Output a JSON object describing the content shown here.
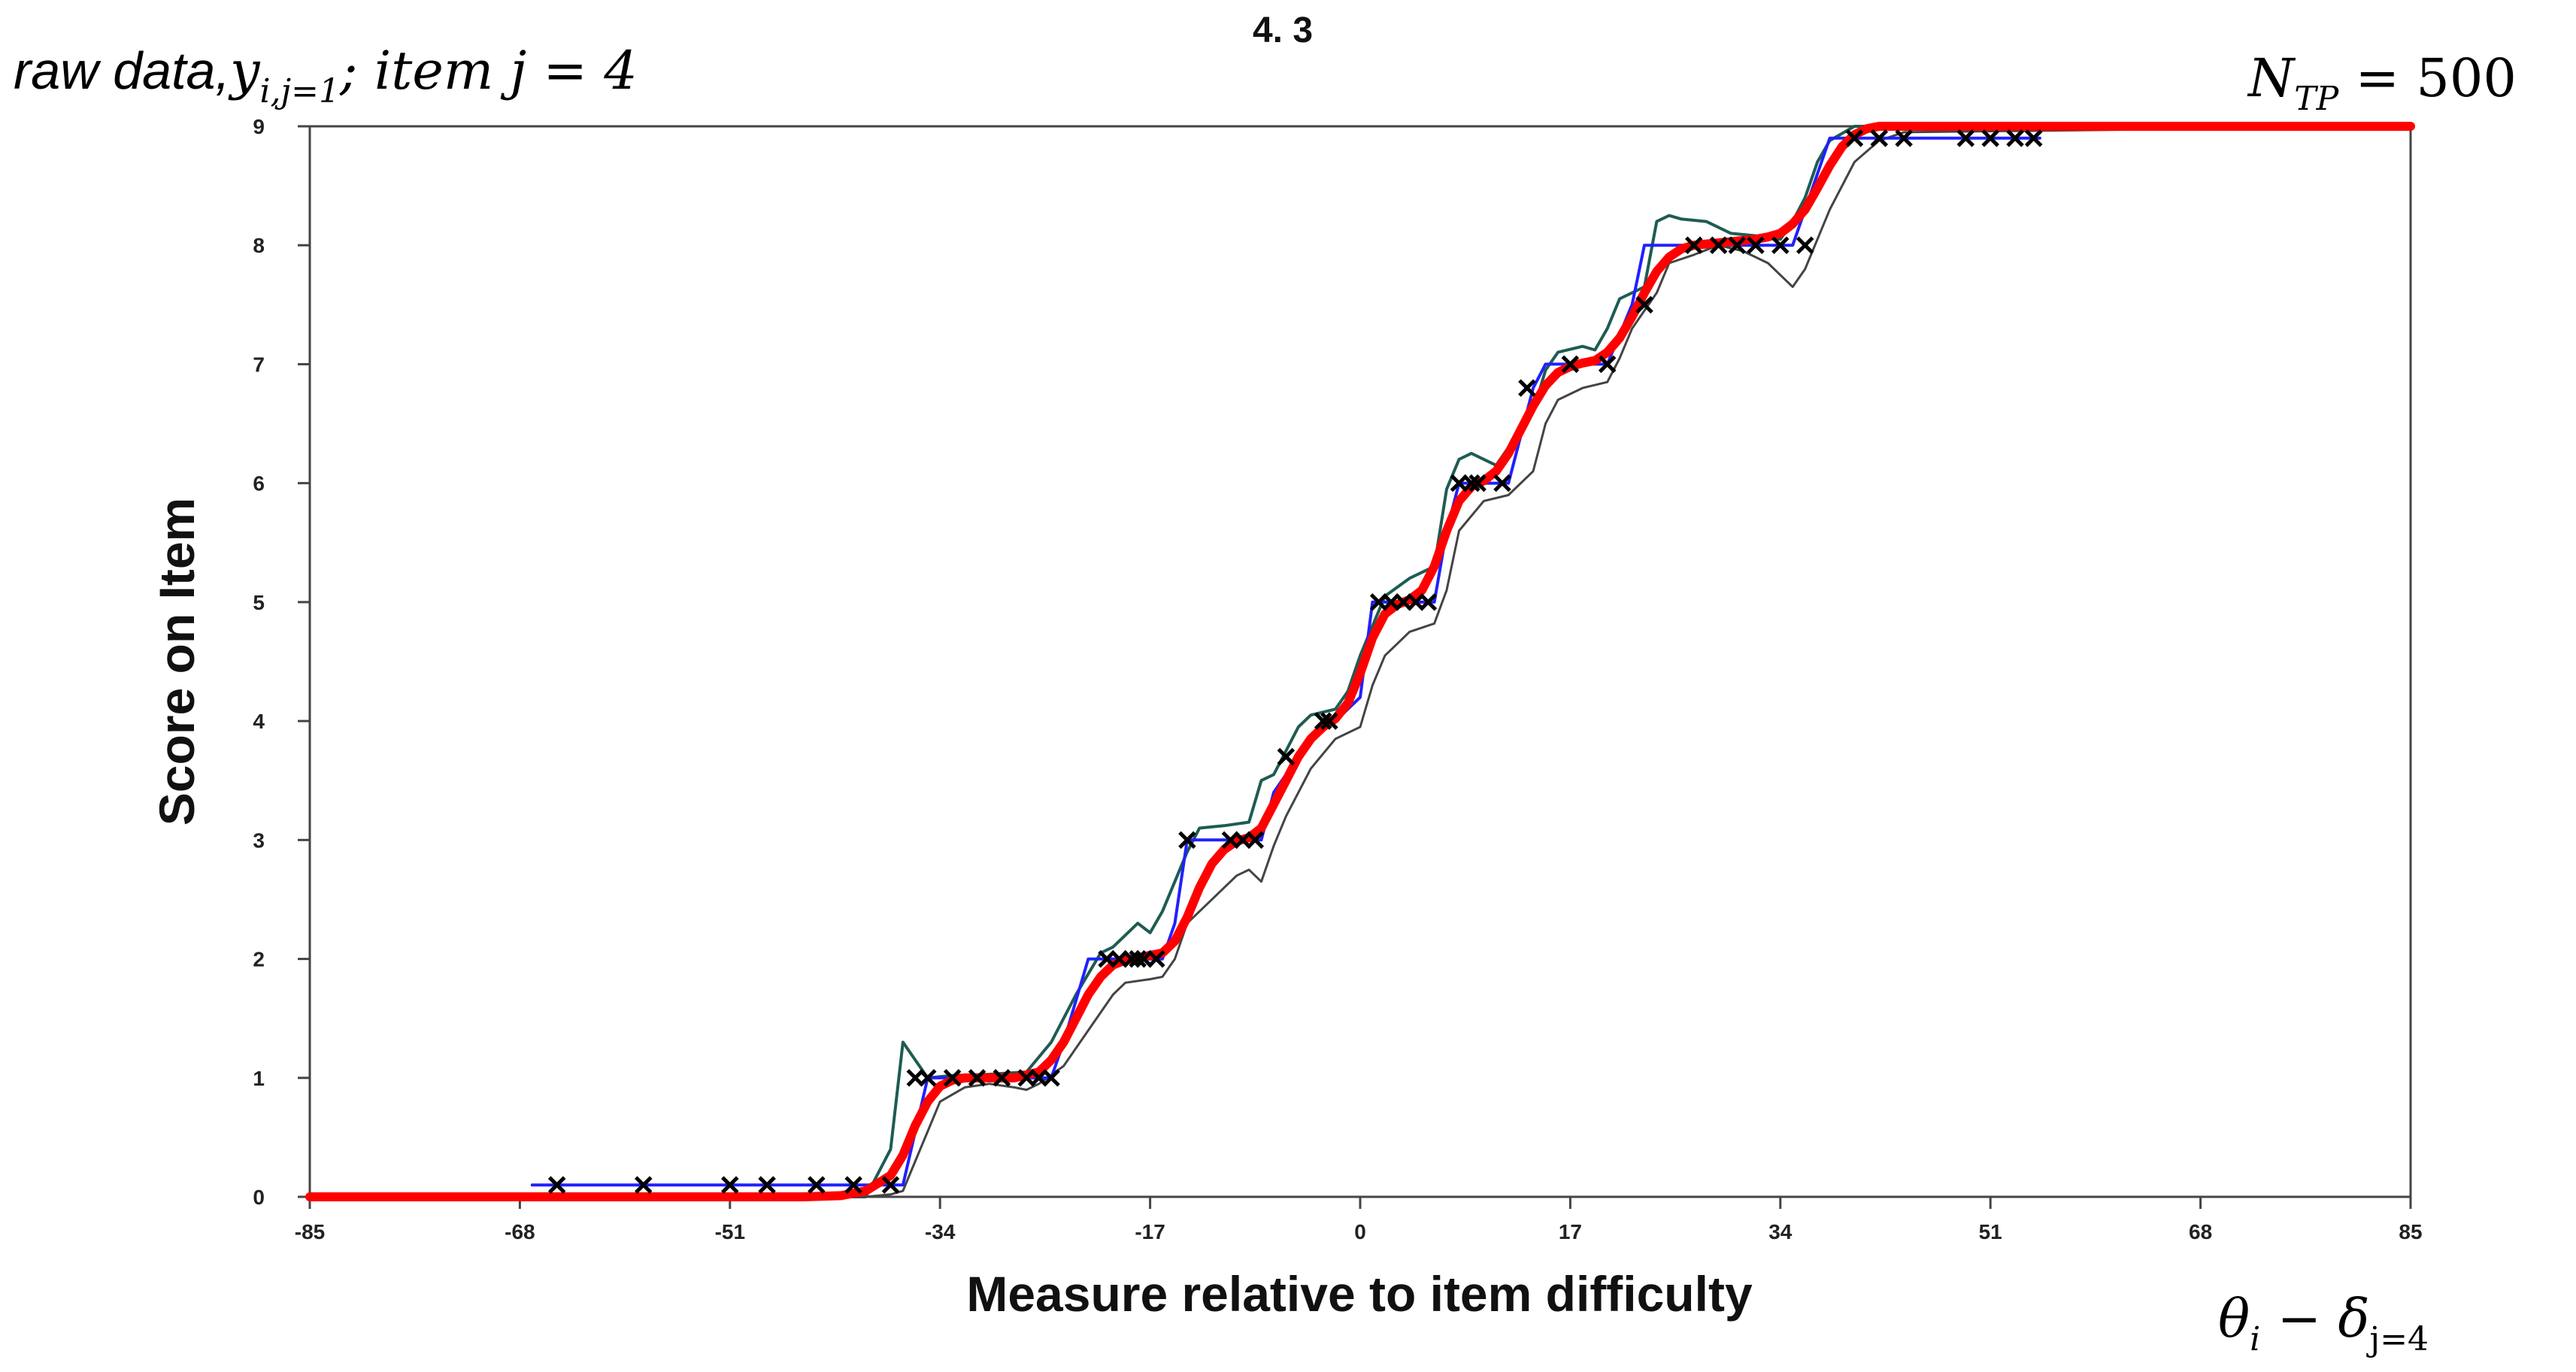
{
  "chart_data": {
    "type": "line",
    "title": "4. 3",
    "xlabel": "Measure relative to item difficulty",
    "ylabel": "Score on Item",
    "xlim": [
      -85,
      85
    ],
    "ylim": [
      0,
      9
    ],
    "x_ticks": [
      -85,
      -68,
      -51,
      -34,
      -17,
      0,
      17,
      34,
      51,
      68,
      85
    ],
    "y_ticks": [
      0,
      1,
      2,
      3,
      4,
      5,
      6,
      7,
      8,
      9
    ],
    "grid": false,
    "annotations": {
      "top_left": {
        "prefix": "raw data,",
        "y": "y",
        "y_sub": "i,j=1",
        "rest": "; item j = 4"
      },
      "top_right": {
        "N": "N",
        "N_sub": "TP",
        "eq": " = 500"
      },
      "bottom_right": {
        "theta": "θ",
        "theta_sub": "i",
        "minus": " − ",
        "delta": "δ",
        "delta_sub": "j=4"
      }
    },
    "colors": {
      "expected": "#ff0000",
      "observed": "#2020ff",
      "upper_band": "#1e5c52",
      "lower_band": "#444444",
      "points": "#000000",
      "frame": "#444444"
    },
    "series": [
      {
        "role": "expected",
        "x": [
          -85,
          -45,
          -42,
          -40,
          -38,
          -37,
          -36,
          -35,
          -34,
          -33,
          -32,
          -30,
          -28,
          -26,
          -25,
          -24,
          -23,
          -22,
          -21,
          -20,
          -19,
          -18,
          -16,
          -15,
          -14,
          -13,
          -12,
          -11,
          -10,
          -9,
          -8,
          -7,
          -6,
          -5,
          -4,
          -3,
          -2,
          -1,
          0,
          1,
          2,
          3,
          4,
          5,
          6,
          7,
          8,
          9,
          10,
          11,
          12,
          13,
          14,
          15,
          16,
          17,
          18,
          19,
          20,
          21,
          22,
          23,
          24,
          25,
          26,
          27,
          28,
          29,
          30,
          31,
          32,
          33,
          34,
          35,
          36,
          37,
          38,
          39,
          40,
          41,
          42,
          43,
          45,
          85
        ],
        "y": [
          0,
          0,
          0.01,
          0.05,
          0.18,
          0.35,
          0.6,
          0.8,
          0.93,
          0.98,
          1,
          1,
          1,
          1.05,
          1.15,
          1.3,
          1.5,
          1.7,
          1.85,
          1.95,
          1.99,
          2.01,
          2.05,
          2.15,
          2.35,
          2.6,
          2.8,
          2.92,
          2.99,
          3.02,
          3.1,
          3.3,
          3.5,
          3.7,
          3.85,
          3.95,
          4.02,
          4.15,
          4.4,
          4.7,
          4.9,
          4.98,
          5.02,
          5.1,
          5.3,
          5.6,
          5.85,
          5.97,
          6.02,
          6.1,
          6.25,
          6.45,
          6.65,
          6.82,
          6.93,
          6.98,
          7.01,
          7.03,
          7.1,
          7.22,
          7.4,
          7.6,
          7.78,
          7.9,
          7.97,
          8,
          8.01,
          8.02,
          8.03,
          8.04,
          8.05,
          8.07,
          8.1,
          8.18,
          8.3,
          8.48,
          8.67,
          8.83,
          8.93,
          8.98,
          9,
          9,
          9,
          9
        ]
      },
      {
        "role": "observed",
        "x": [
          -67,
          -60,
          -53,
          -49,
          -44,
          -40,
          -38,
          -37,
          -35,
          -30,
          -26,
          -25,
          -24,
          -22,
          -20,
          -18,
          -16,
          -15,
          -14,
          -12,
          -10,
          -8,
          -7,
          -5,
          -3,
          -2,
          0,
          1,
          2,
          4,
          6,
          7,
          8,
          9,
          10,
          12,
          14,
          15,
          16,
          17,
          18,
          20,
          22,
          23,
          26,
          28,
          30,
          32,
          34,
          35,
          36,
          38,
          39,
          40,
          43,
          45,
          47,
          49,
          52,
          55
        ],
        "y": [
          0.1,
          0.1,
          0.1,
          0.1,
          0.1,
          0.1,
          0.1,
          0.1,
          1,
          1,
          1,
          1,
          1.3,
          2,
          2,
          2,
          2,
          2.3,
          3,
          3,
          3,
          3,
          3.4,
          3.7,
          4,
          4,
          4.2,
          5,
          5,
          5,
          5,
          5.6,
          6,
          6,
          6,
          6,
          6.8,
          7,
          7,
          7,
          7,
          7,
          7.5,
          8,
          8,
          8,
          8,
          8,
          8,
          8,
          8.3,
          8.9,
          8.9,
          8.9,
          8.9,
          8.9,
          8.9,
          8.9,
          8.9,
          8.9
        ]
      },
      {
        "role": "upper_band",
        "x": [
          -85,
          -40,
          -38,
          -37,
          -36,
          -35,
          -33,
          -30,
          -27,
          -25,
          -23,
          -21,
          -20,
          -19,
          -18,
          -17,
          -16,
          -14,
          -13,
          -11,
          -9,
          -8,
          -7,
          -5,
          -4,
          -2,
          -1,
          0,
          2,
          4,
          6,
          7,
          8,
          9,
          11,
          12,
          14,
          15,
          16,
          18,
          19,
          20,
          21,
          23,
          24,
          25,
          26,
          28,
          30,
          32,
          34,
          35,
          36,
          37,
          38,
          40,
          42,
          44,
          85
        ],
        "y": [
          0,
          0,
          0.4,
          1.3,
          1.15,
          1,
          1.02,
          1.03,
          1.05,
          1.3,
          1.7,
          2.05,
          2.1,
          2.2,
          2.3,
          2.22,
          2.4,
          2.9,
          3.1,
          3.12,
          3.15,
          3.5,
          3.55,
          3.95,
          4.05,
          4.1,
          4.25,
          4.55,
          5.05,
          5.2,
          5.3,
          5.95,
          6.2,
          6.25,
          6.15,
          6.3,
          6.6,
          6.95,
          7.1,
          7.15,
          7.12,
          7.3,
          7.55,
          7.65,
          8.2,
          8.25,
          8.22,
          8.2,
          8.1,
          8.08,
          8.05,
          8.2,
          8.4,
          8.7,
          8.88,
          9,
          9,
          9,
          9
        ]
      },
      {
        "role": "lower_band",
        "x": [
          -85,
          -40,
          -38,
          -37,
          -36,
          -35,
          -34,
          -32,
          -30,
          -28,
          -27,
          -26,
          -24,
          -22,
          -20,
          -19,
          -17,
          -16,
          -15,
          -14,
          -12,
          -10,
          -9,
          -8,
          -7,
          -6,
          -4,
          -2,
          0,
          1,
          2,
          3,
          4,
          6,
          7,
          8,
          10,
          12,
          14,
          15,
          16,
          18,
          20,
          21,
          22,
          24,
          25,
          27,
          29,
          31,
          33,
          34,
          35,
          36,
          38,
          40,
          42,
          44,
          85
        ],
        "y": [
          0,
          0,
          0.02,
          0.05,
          0.3,
          0.55,
          0.8,
          0.92,
          0.95,
          0.92,
          0.9,
          0.95,
          1.1,
          1.4,
          1.7,
          1.8,
          1.83,
          1.85,
          2,
          2.3,
          2.5,
          2.7,
          2.75,
          2.65,
          2.95,
          3.2,
          3.6,
          3.85,
          3.95,
          4.3,
          4.55,
          4.65,
          4.75,
          4.82,
          5.1,
          5.6,
          5.85,
          5.9,
          6.1,
          6.5,
          6.7,
          6.8,
          6.85,
          7.05,
          7.3,
          7.6,
          7.85,
          7.92,
          8,
          7.95,
          7.85,
          7.75,
          7.65,
          7.8,
          8.3,
          8.7,
          8.88,
          8.95,
          9
        ]
      },
      {
        "role": "observed_points",
        "x": [
          -65,
          -58,
          -51,
          -48,
          -44,
          -41,
          -38,
          -36,
          -35,
          -33,
          -31,
          -29,
          -27,
          -26,
          -25,
          -20.5,
          -19.5,
          -18.5,
          -18,
          -17.5,
          -16.5,
          -14,
          -10.5,
          -9.5,
          -8.5,
          -6,
          -3,
          -2.5,
          1.5,
          2.5,
          3.5,
          4.5,
          5.5,
          8,
          9,
          9.5,
          11.5,
          13.5,
          17,
          20,
          23,
          27,
          29,
          30.5,
          32,
          34,
          36,
          40,
          42,
          44,
          49,
          51,
          53,
          54.5
        ]
      }
    ],
    "observed_points_y": [
      0.1,
      0.1,
      0.1,
      0.1,
      0.1,
      0.1,
      0.1,
      1,
      1,
      1,
      1,
      1,
      1,
      1,
      1,
      2,
      2,
      2,
      2,
      2,
      2,
      3,
      3,
      3,
      3,
      3.7,
      4,
      4,
      5,
      5,
      5,
      5,
      5,
      6,
      6,
      6,
      6,
      6.8,
      7,
      7,
      7.5,
      8,
      8,
      8,
      8,
      8,
      8,
      8.9,
      8.9,
      8.9,
      8.9,
      8.9,
      8.9,
      8.9
    ]
  }
}
